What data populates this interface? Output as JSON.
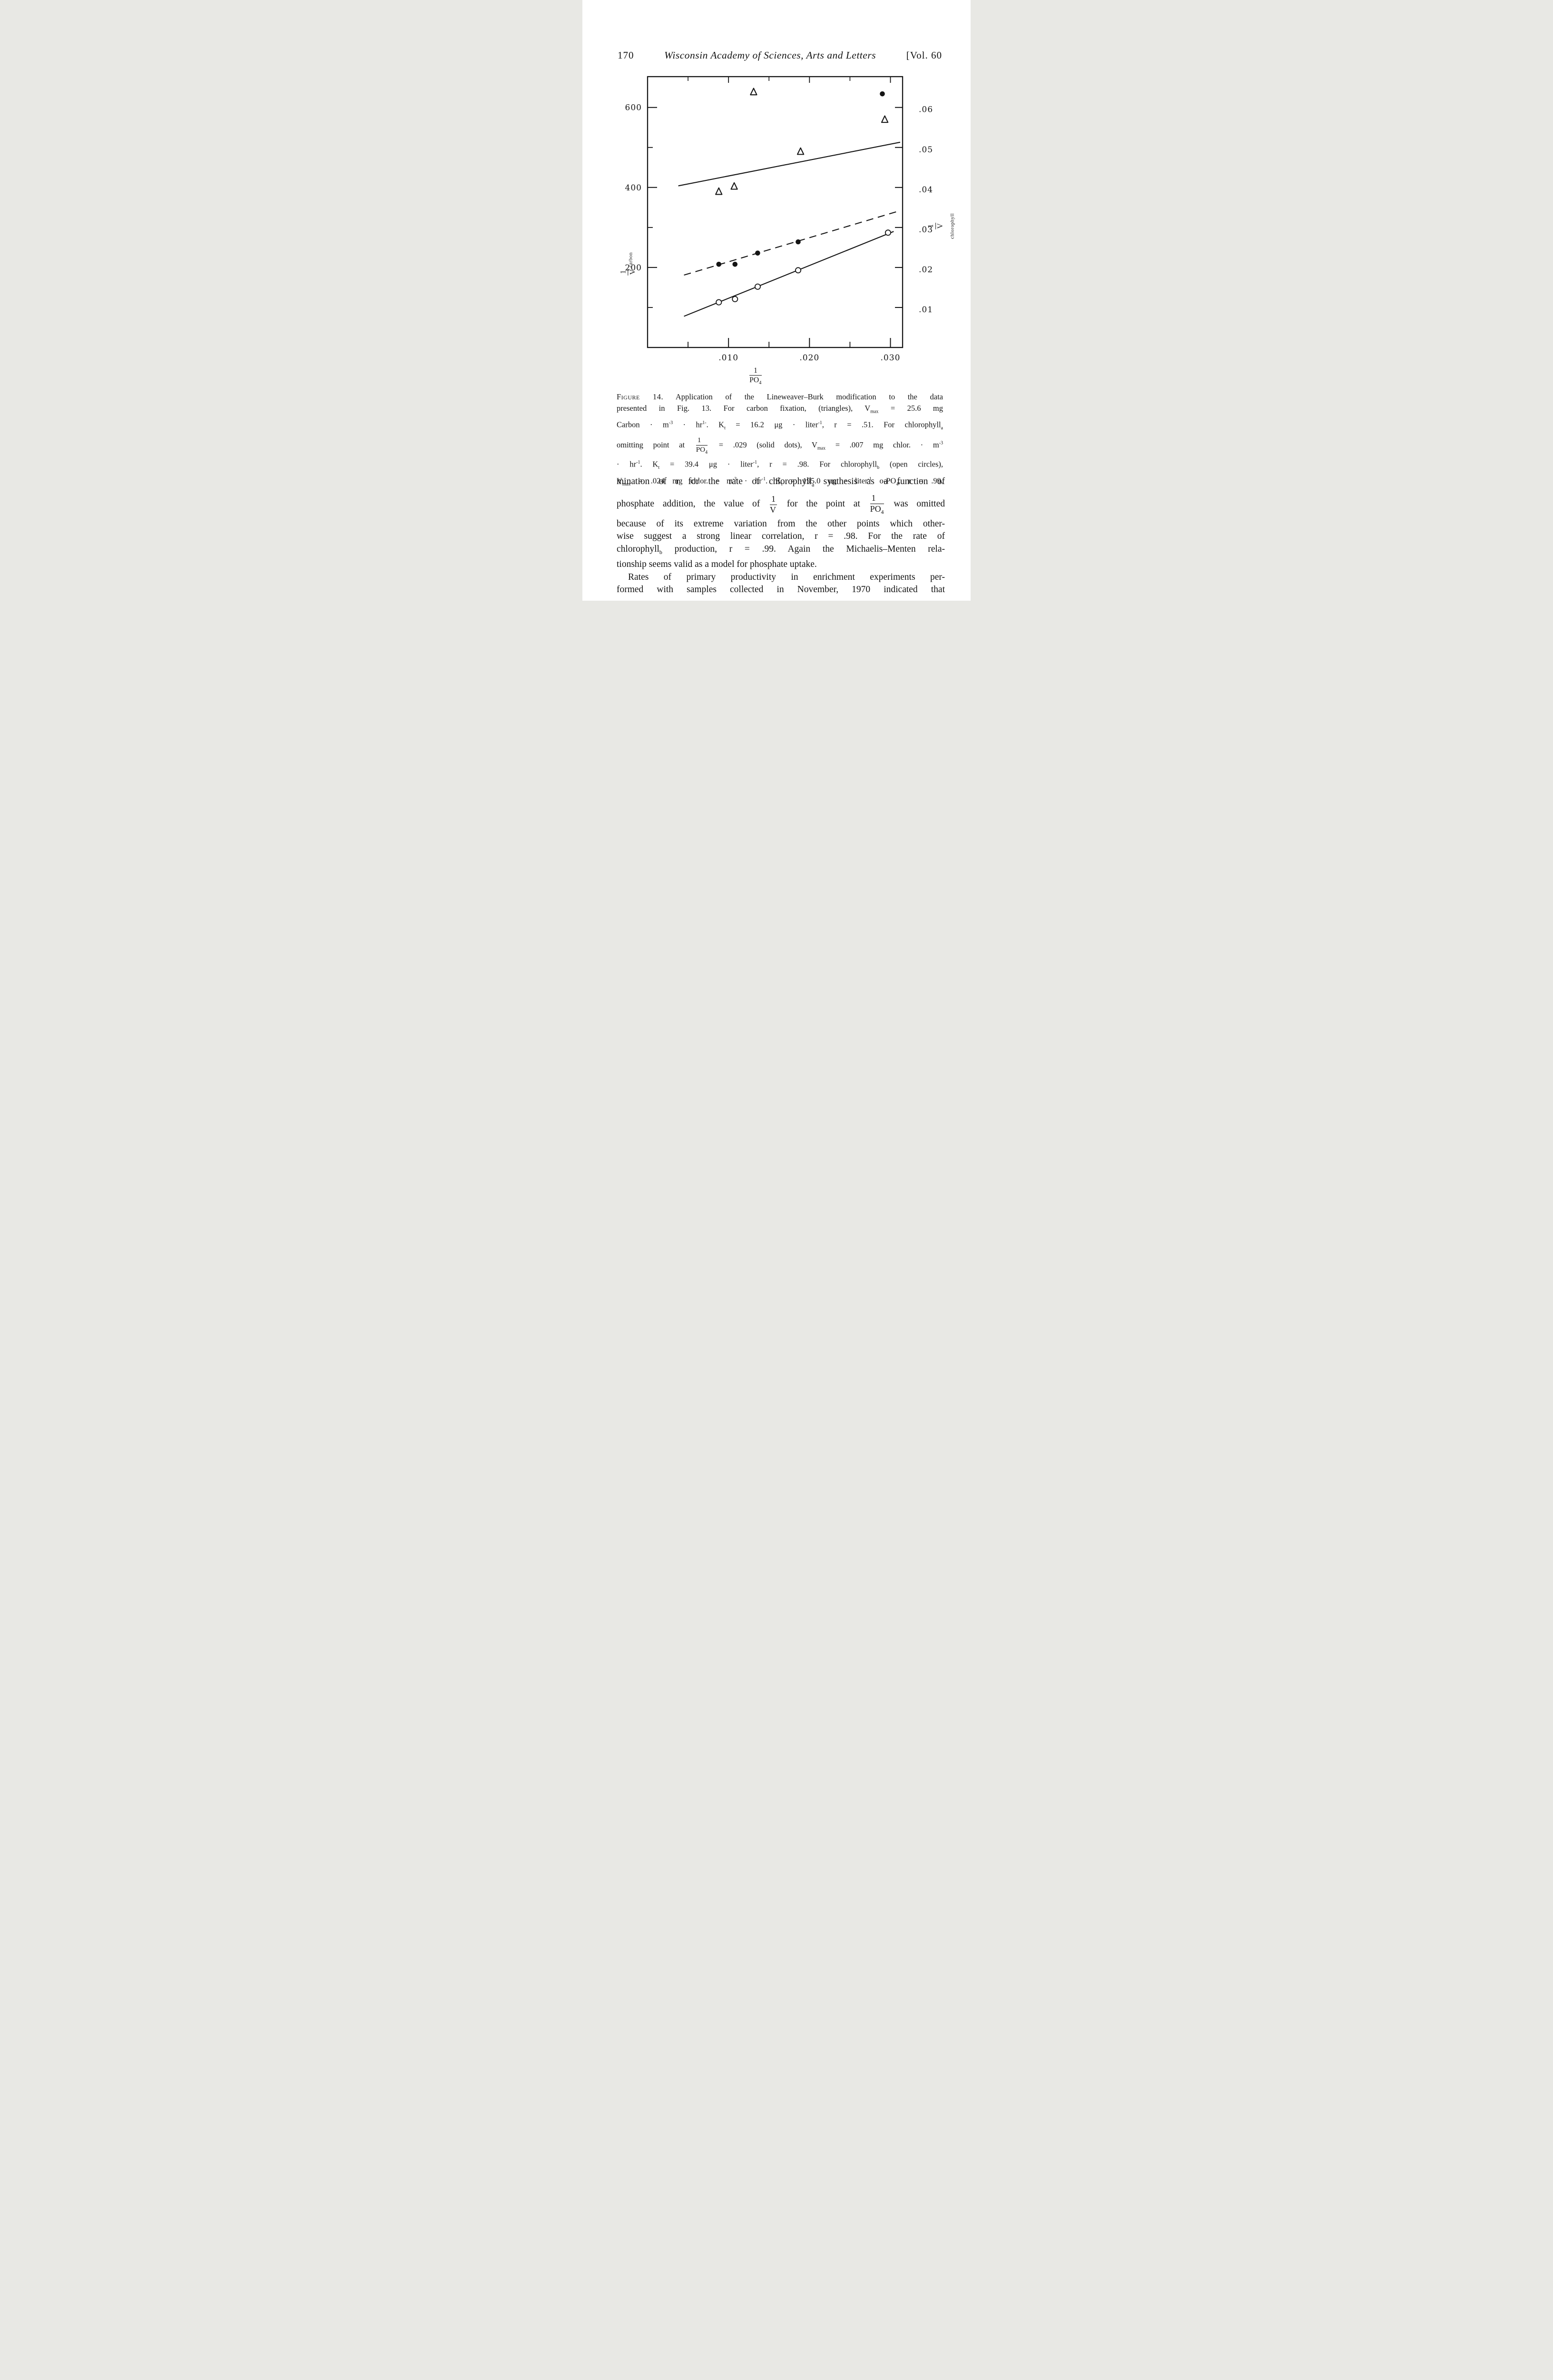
{
  "header": {
    "page_number": "170",
    "journal_title": "Wisconsin Academy of Sciences, Arts and Letters",
    "volume": "[Vol. 60"
  },
  "figure": {
    "ylabel_left_html": "<span class=\"fr\"><span class=\"n\">1</span><span class=\"d\">V</span></span><sub>carbon</sub>",
    "ylabel_right_html": "<span class=\"fr\"><span class=\"n\">1</span><span class=\"d\">V</span></span><sub>chlorophyll</sub>",
    "xlabel_html": "<span class=\"fr\"><span class=\"n\">1</span><span class=\"d\">PO<sub>4</sub></span></span>"
  },
  "chart_data": {
    "type": "scatter",
    "title": "",
    "xlabel": "1/PO4",
    "ylabel_left": "1/V carbon",
    "ylabel_right": "1/V chlorophyll",
    "xlim": [
      0,
      0.0315
    ],
    "ylim_left": [
      0,
      677
    ],
    "ylim_right": [
      0,
      0.0677
    ],
    "grid": false,
    "right_axis_note": "right-axis value = left-axis value / 10000 (600 aligns with .06)",
    "x_ticks_major": {
      "values": [
        0.01,
        0.02,
        0.03
      ],
      "labels": [
        ".010",
        ".020",
        ".030"
      ]
    },
    "x_ticks_minor": [
      0.005,
      0.015,
      0.025
    ],
    "y_ticks_left_major": {
      "values": [
        600,
        400,
        200
      ],
      "labels": [
        "600",
        "400",
        "200"
      ]
    },
    "y_ticks_left_minor": [
      500,
      300,
      100
    ],
    "y_ticks_right": {
      "values": [
        600,
        500,
        400,
        300,
        200,
        100
      ],
      "labels": [
        ".06",
        ".05",
        ".04",
        ".03",
        ".02",
        ".01"
      ]
    },
    "series": [
      {
        "name": "carbon fixation (triangles)",
        "marker": "triangle-open",
        "points": [
          [
            0.0088,
            390
          ],
          [
            0.0107,
            403
          ],
          [
            0.0131,
            639
          ],
          [
            0.0189,
            490
          ],
          [
            0.0293,
            570
          ]
        ],
        "fit_line": {
          "style": "solid",
          "from": [
            0.0038,
            404
          ],
          "to": [
            0.0312,
            513
          ]
        },
        "Vmax": "25.6 mg Carbon·m-3·hr-1",
        "Kt": "16.2 ug/liter",
        "r": 0.51
      },
      {
        "name": "chlorophyll a (solid dots, point at 1/PO4=.029 omitted from fit)",
        "marker": "dot-filled",
        "points": [
          [
            0.0088,
            208
          ],
          [
            0.0108,
            208
          ],
          [
            0.0136,
            236
          ],
          [
            0.0186,
            264
          ],
          [
            0.029,
            634
          ]
        ],
        "fit_line": {
          "style": "dashed",
          "from": [
            0.0045,
            181
          ],
          "to": [
            0.0312,
            342
          ]
        },
        "Vmax": ".007 mg chlor·m-3·hr-1",
        "Kt": "39.4 ug/liter",
        "r": 0.98
      },
      {
        "name": "chlorophyll b (open circles)",
        "marker": "circle-open",
        "points": [
          [
            0.0088,
            113
          ],
          [
            0.0108,
            121
          ],
          [
            0.0136,
            152
          ],
          [
            0.0186,
            193
          ],
          [
            0.0297,
            287
          ]
        ],
        "fit_line": {
          "style": "solid",
          "from": [
            0.0045,
            78
          ],
          "to": [
            0.0304,
            290
          ]
        },
        "Vmax": ".024 mg chlor·m-3·hr-1",
        "Kt": "195.0 ug/liter o-PO4",
        "r": 0.99
      }
    ]
  },
  "caption": {
    "lines": [
      {
        "cls": "jl",
        "html": "<span class=\"figlabel\">Figure 14.</span> Application of the Lineweaver&#8211;Burk modification to the data"
      },
      {
        "cls": "jl",
        "html": "presented in Fig. 13. For carbon fixation, (triangles), V<sub>max</sub> = 25.6 mg"
      },
      {
        "cls": "jl",
        "html": "Carbon &#183; m<sup>-3</sup> &#183; hr<sup>1-</sup>. K<sub>t</sub> = 16.2 &#956;g &#183; liter<sup>-1</sup>, r = .51. For chlorophyll<sub>a</sub>"
      },
      {
        "cls": "jl tall",
        "html": "omitting point at <span class=\"fr\"><span class=\"n\">1</span><span class=\"d\">PO<sub>4</sub></span></span> = .029 (solid dots), V<sub>max</sub> = .007 mg chlor. &#183; m<sup>-3</sup>"
      },
      {
        "cls": "jl",
        "html": "&#183; hr<sup>-1</sup>. K<sub>t</sub> = 39.4 &#956;g &#183; liter<sup>-1</sup>, r = .98. For chlorophyll<sub>b</sub> (open circles),"
      },
      {
        "cls": "jl",
        "html": "V<sub>max</sub> = .024 mg chlor. &#183; m<sup>-3</sup> &#183; hr<sup>-1</sup>. K<sub>t</sub> = 195.0 &#956;g &#183; liter<sup>-1</sup> o-PO<sub>4</sub>, r = .99."
      }
    ]
  },
  "body": {
    "lines": [
      {
        "cls": "jl",
        "html": "mination of r for the rate of chlorophyll<sub>a</sub> synthesis as a function of"
      },
      {
        "cls": "jl tall",
        "html": "phosphate addition, the value of <span class=\"fr\"><span class=\"n\">1</span><span class=\"d\">V</span></span> for the point at <span class=\"fr\"><span class=\"n\">1</span><span class=\"d\">PO<sub>4</sub></span></span> was omitted"
      },
      {
        "cls": "jl",
        "html": "because of its extreme variation from the other points which other-"
      },
      {
        "cls": "jl",
        "html": "wise suggest a strong linear correlation, r = .98. For the rate of"
      },
      {
        "cls": "jl",
        "html": "chlorophyll<sub>b</sub> production, r = .99. Again the Michaelis&#8211;Menten rela-"
      },
      {
        "cls": "",
        "html": "tionship seems valid as a model for phosphate uptake."
      },
      {
        "cls": "jl indent",
        "html": "Rates of primary productivity in enrichment experiments per-"
      },
      {
        "cls": "jl",
        "html": "formed with samples collected in November, 1970 indicated that"
      }
    ]
  }
}
